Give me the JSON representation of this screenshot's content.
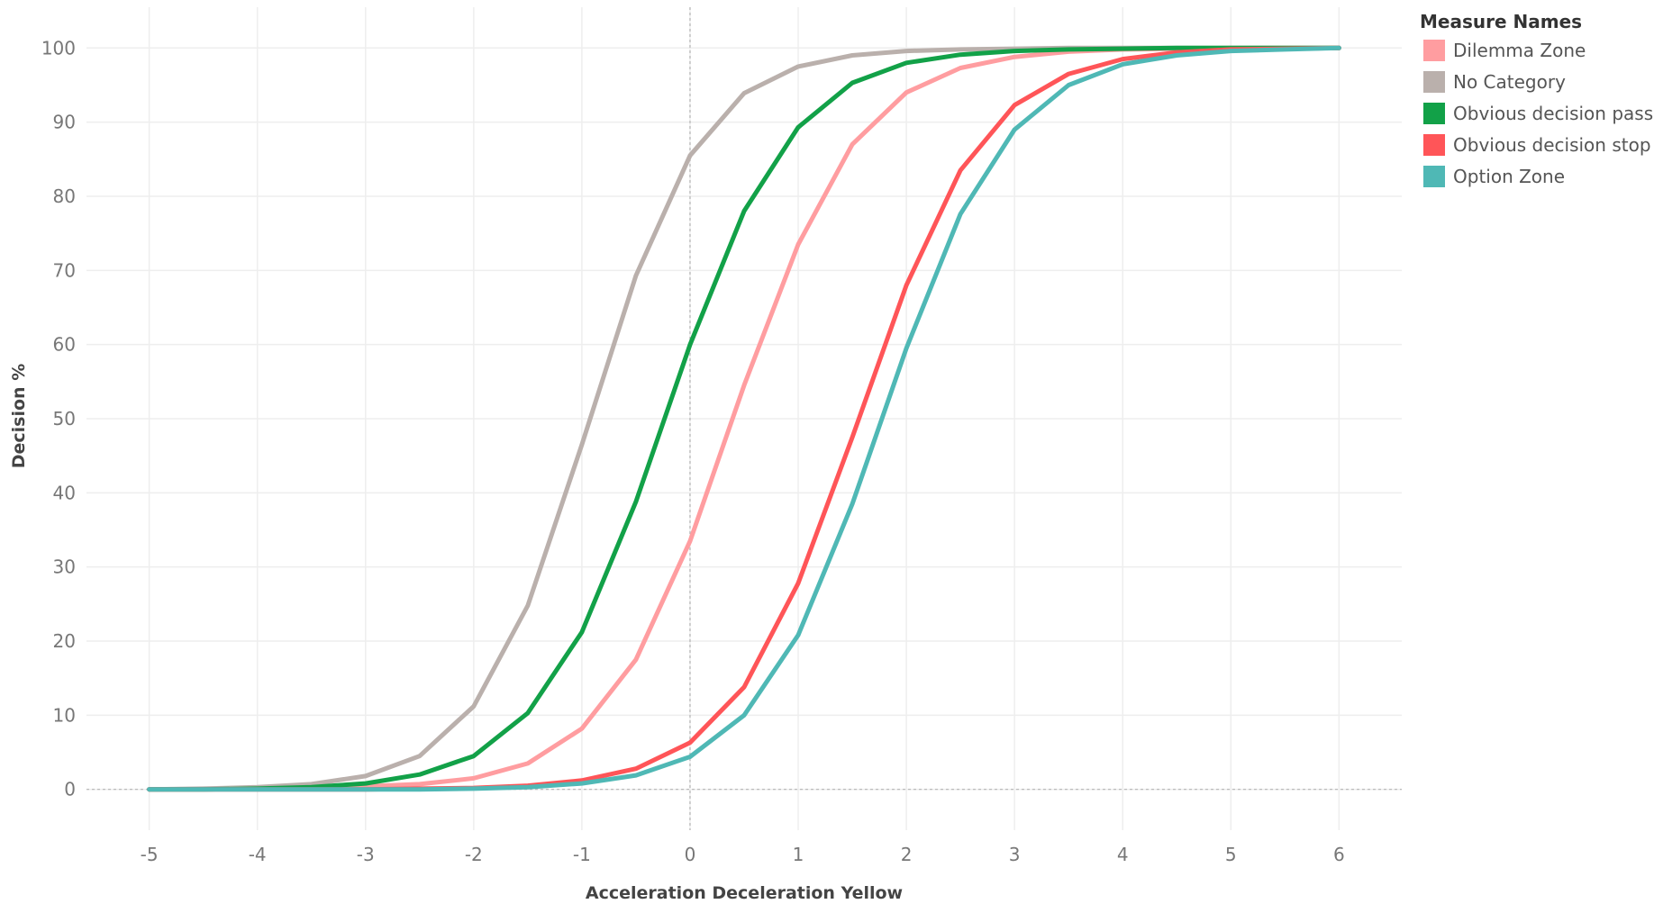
{
  "chart_data": {
    "type": "line",
    "xlabel": "Acceleration Deceleration Yellow",
    "ylabel": "Decision %",
    "xlim": [
      -5.58,
      6.58
    ],
    "ylim": [
      -5.5,
      105.5
    ],
    "x_ticks": [
      -5,
      -4,
      -3,
      -2,
      -1,
      0,
      1,
      2,
      3,
      4,
      5,
      6
    ],
    "y_ticks": [
      0,
      10,
      20,
      30,
      40,
      50,
      60,
      70,
      80,
      90,
      100
    ],
    "grid": true,
    "zero_lines": true,
    "legend_position": "top-right",
    "x": [
      -5,
      -4.5,
      -4,
      -3.5,
      -3,
      -2.5,
      -2,
      -1.5,
      -1,
      -0.5,
      0,
      0.5,
      1,
      1.5,
      2,
      2.5,
      3,
      3.5,
      4,
      4.5,
      5,
      5.5,
      6
    ],
    "series": [
      {
        "name": "Dilemma Zone",
        "color": "#ff9da0",
        "values": [
          0,
          0,
          0.1,
          0.2,
          0.4,
          0.7,
          1.5,
          3.5,
          8.2,
          17.5,
          33.5,
          54.5,
          73.5,
          87,
          94,
          97.3,
          98.8,
          99.5,
          99.8,
          99.9,
          100,
          100,
          100
        ]
      },
      {
        "name": "No Category",
        "color": "#bab0ac",
        "values": [
          0,
          0.1,
          0.3,
          0.7,
          1.8,
          4.5,
          11.2,
          24.8,
          46.5,
          69.3,
          85.5,
          93.9,
          97.5,
          99,
          99.6,
          99.8,
          99.9,
          100,
          100,
          100,
          100,
          100,
          100
        ]
      },
      {
        "name": "Obvious decision pass",
        "color": "#12a148",
        "values": [
          0,
          0,
          0.1,
          0.3,
          0.8,
          2,
          4.5,
          10.3,
          21.2,
          38.8,
          60,
          78,
          89.3,
          95.3,
          98,
          99.1,
          99.6,
          99.8,
          99.9,
          100,
          100,
          100,
          100
        ]
      },
      {
        "name": "Obvious decision stop",
        "color": "#ff5558",
        "values": [
          0,
          0,
          0,
          0,
          0,
          0.1,
          0.2,
          0.5,
          1.2,
          2.8,
          6.3,
          13.8,
          27.8,
          47.5,
          68,
          83.5,
          92.3,
          96.5,
          98.5,
          99.4,
          99.8,
          99.9,
          100
        ]
      },
      {
        "name": "Option Zone",
        "color": "#4fb8b5",
        "values": [
          0,
          0,
          0,
          0,
          0,
          0,
          0.1,
          0.3,
          0.8,
          1.9,
          4.4,
          10,
          20.8,
          38.5,
          59.5,
          77.6,
          89,
          95,
          97.8,
          99,
          99.6,
          99.8,
          100
        ]
      }
    ]
  },
  "legend": {
    "title": "Measure Names",
    "items": [
      {
        "label": "Dilemma Zone",
        "color": "#ff9da0"
      },
      {
        "label": "No Category",
        "color": "#bab0ac"
      },
      {
        "label": "Obvious decision pass",
        "color": "#12a148"
      },
      {
        "label": "Obvious decision stop",
        "color": "#ff5558"
      },
      {
        "label": "Option Zone",
        "color": "#4fb8b5"
      }
    ]
  }
}
